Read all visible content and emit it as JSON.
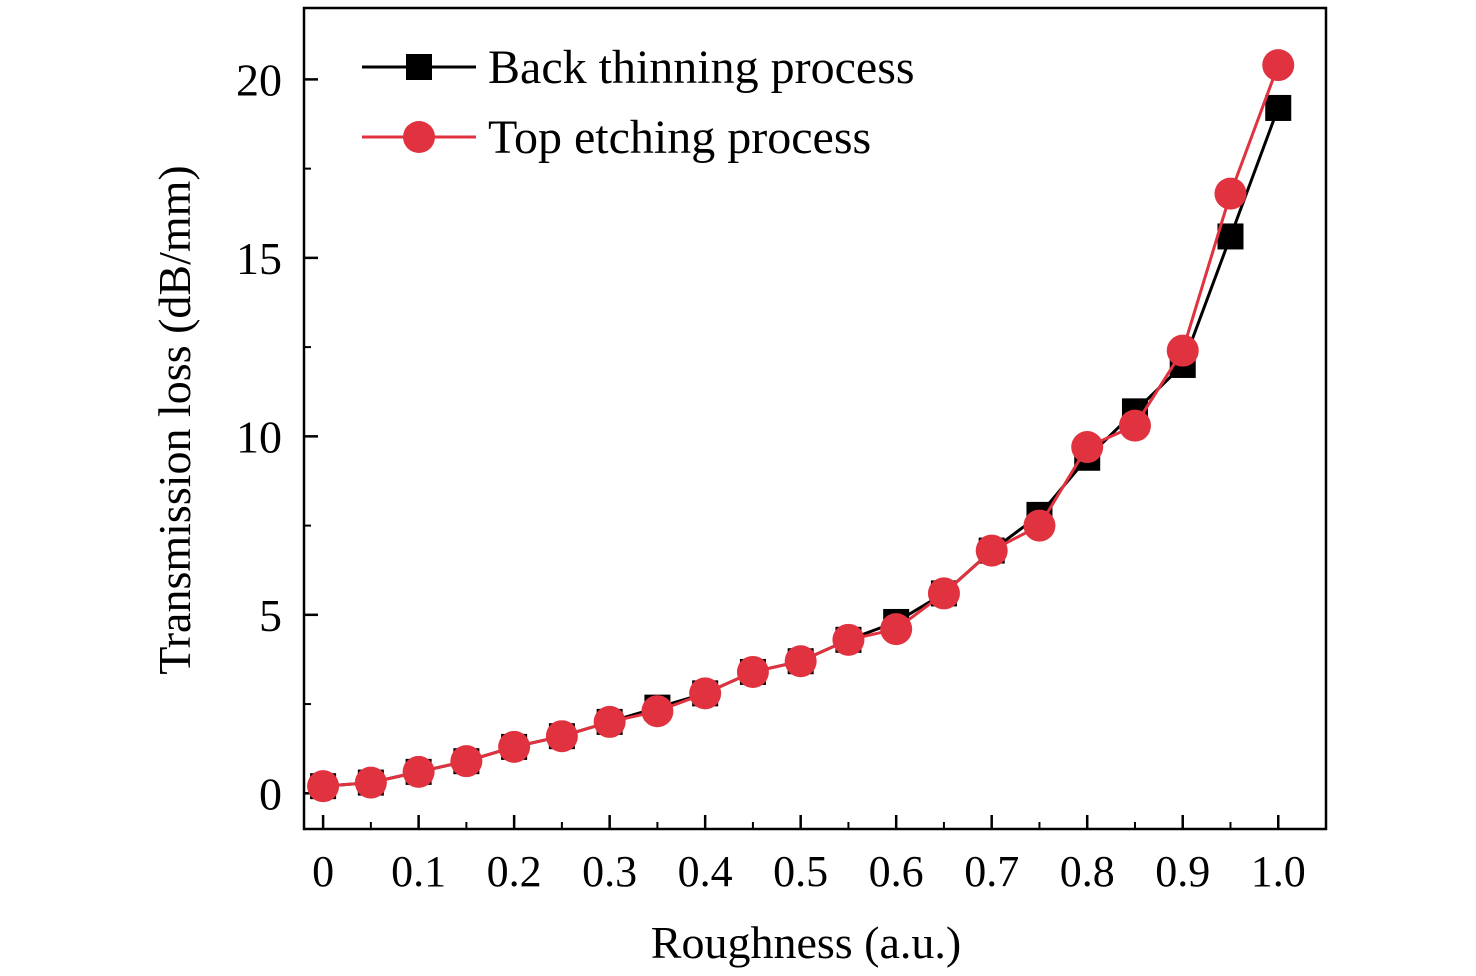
{
  "chart_data": {
    "type": "line",
    "title": "",
    "xlabel": "Roughness (a.u.)",
    "ylabel": "Transmission loss (dB/mm)",
    "xlim": [
      -0.02,
      1.05
    ],
    "ylim": [
      -1,
      22
    ],
    "xticks": [
      0,
      0.1,
      0.2,
      0.3,
      0.4,
      0.5,
      0.6,
      0.7,
      0.8,
      0.9,
      1.0
    ],
    "xtick_labels": [
      "0",
      "0.1",
      "0.2",
      "0.3",
      "0.4",
      "0.5",
      "0.6",
      "0.7",
      "0.8",
      "0.9",
      "1.0"
    ],
    "yticks": [
      0,
      5,
      10,
      15,
      20
    ],
    "ytick_labels": [
      "0",
      "5",
      "10",
      "15",
      "20"
    ],
    "grid": false,
    "legend_position": "top-left",
    "x": [
      0,
      0.05,
      0.1,
      0.15,
      0.2,
      0.25,
      0.3,
      0.35,
      0.4,
      0.45,
      0.5,
      0.55,
      0.6,
      0.65,
      0.7,
      0.75,
      0.8,
      0.85,
      0.9,
      0.95,
      1.0
    ],
    "series": [
      {
        "name": "Back thinning process",
        "color": "#000000",
        "marker": "square",
        "values": [
          0.2,
          0.3,
          0.6,
          0.9,
          1.3,
          1.6,
          2.0,
          2.4,
          2.8,
          3.4,
          3.7,
          4.3,
          4.8,
          5.6,
          6.8,
          7.8,
          9.4,
          10.7,
          12.0,
          15.6,
          19.2
        ]
      },
      {
        "name": "Top etching process",
        "color": "#e0323f",
        "marker": "circle",
        "values": [
          0.2,
          0.3,
          0.6,
          0.9,
          1.3,
          1.6,
          2.0,
          2.3,
          2.8,
          3.4,
          3.7,
          4.3,
          4.6,
          5.6,
          6.8,
          7.5,
          9.7,
          10.3,
          12.4,
          16.8,
          20.4
        ]
      }
    ]
  }
}
